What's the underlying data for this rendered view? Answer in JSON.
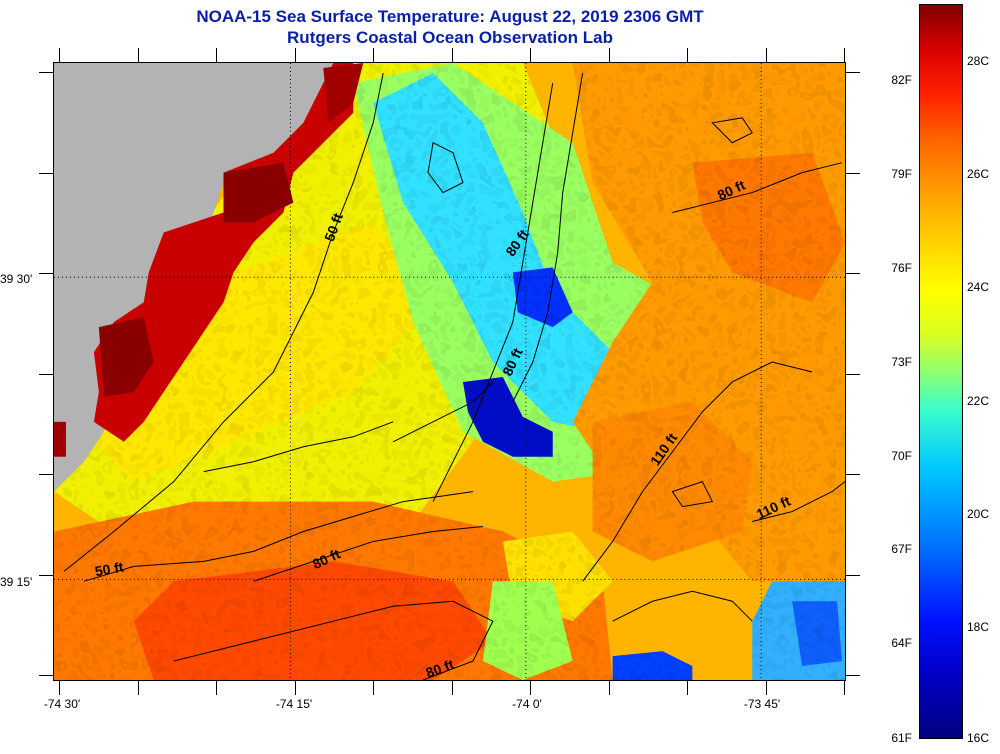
{
  "header": {
    "title": "NOAA-15 Sea Surface Temperature:  August 22, 2019 2306 GMT",
    "subtitle": "Rutgers Coastal Ocean Observation Lab"
  },
  "map": {
    "lon_labels": [
      "-74 30'",
      "-74 15'",
      "-74 0'",
      "-73 45'"
    ],
    "lat_labels": [
      "39 30'",
      "39 15'"
    ],
    "contour_labels": [
      {
        "text": "50 ft"
      },
      {
        "text": "50 ft"
      },
      {
        "text": "80 ft"
      },
      {
        "text": "80 ft"
      },
      {
        "text": "80 ft"
      },
      {
        "text": "80 ft"
      },
      {
        "text": "80 ft"
      },
      {
        "text": "110 ft"
      },
      {
        "text": "110 ft"
      }
    ],
    "colors": {
      "land": "#b3b3b3",
      "warm": "#ff6a00",
      "hot": "#c00000",
      "cool": "#00c8ff",
      "cold": "#0010d0"
    }
  },
  "colorbar": {
    "fahrenheit": [
      "82F",
      "79F",
      "76F",
      "73F",
      "70F",
      "67F",
      "64F",
      "61F"
    ],
    "celsius": [
      "28C",
      "26C",
      "24C",
      "22C",
      "20C",
      "18C",
      "16C"
    ]
  }
}
